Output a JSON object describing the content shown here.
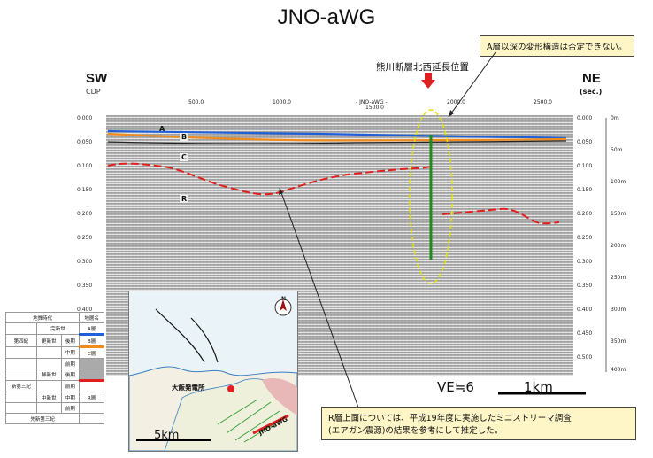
{
  "title": "JNO-aWG",
  "labels": {
    "sw": "SW",
    "ne": "NE",
    "cdp": "CDP",
    "sec": "(sec.)"
  },
  "fault_label": "熊川断層北西延長位置",
  "callout_top": "A層以深の変形構造は否定できない。",
  "callout_bottom_line1": "R層上面については、平成19年度に実施したミニストリーマ調査",
  "callout_bottom_line2": "(エアガン震源)の結果を参考にして推定した。",
  "cdp_ticks": [
    "500.0",
    "1000.0",
    "1500.0",
    "2000.0",
    "2500.0"
  ],
  "cdp_center_label": "- JNO-aWG -",
  "time_ticks": [
    "0.000",
    "0.050",
    "0.100",
    "0.150",
    "0.200",
    "0.250",
    "0.300",
    "0.350",
    "0.400",
    "0.450",
    "0.500"
  ],
  "depth_ticks": [
    "0m",
    "50m",
    "100m",
    "150m",
    "200m",
    "250m",
    "300m",
    "350m",
    "400m"
  ],
  "layers": [
    "A",
    "B",
    "C",
    "R"
  ],
  "ve_label": "VE≒6",
  "scale_km": "1km",
  "map": {
    "scale": "5km",
    "plant": "大飯発電所",
    "line": "JNO-aWG"
  },
  "legend": {
    "header": [
      "地質時代",
      "地層名"
    ],
    "rows": [
      [
        "",
        "完新世",
        "",
        "A層"
      ],
      [
        "第四紀",
        "更新世",
        "後期",
        "B層"
      ],
      [
        "",
        "",
        "中期",
        "C層"
      ],
      [
        "",
        "",
        "前期",
        ""
      ],
      [
        "",
        "鮮新世",
        "後期",
        ""
      ],
      [
        "新第三紀",
        "",
        "前期",
        ""
      ],
      [
        "",
        "中新世",
        "中期",
        "R層"
      ],
      [
        "",
        "",
        "前期",
        ""
      ],
      [
        "先新第三紀",
        "",
        "",
        ""
      ]
    ]
  },
  "colors": {
    "layerA": "#1f5fd8",
    "layerB": "#f08c1e",
    "layerR": "#e02020",
    "fault": "#1f8a1f",
    "arrow": "#e02020"
  }
}
